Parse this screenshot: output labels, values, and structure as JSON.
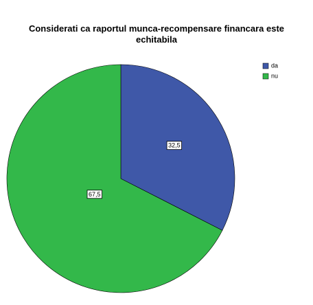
{
  "chart_data": {
    "type": "pie",
    "title": "Considerati ca raportul munca-recompensare financara este echitabila",
    "categories": [
      "da",
      "nu"
    ],
    "values": [
      32.5,
      67.5
    ],
    "value_labels": [
      "32,5",
      "67,5"
    ],
    "colors": [
      "#3f58a8",
      "#33b84a"
    ],
    "legend": "top-right"
  }
}
